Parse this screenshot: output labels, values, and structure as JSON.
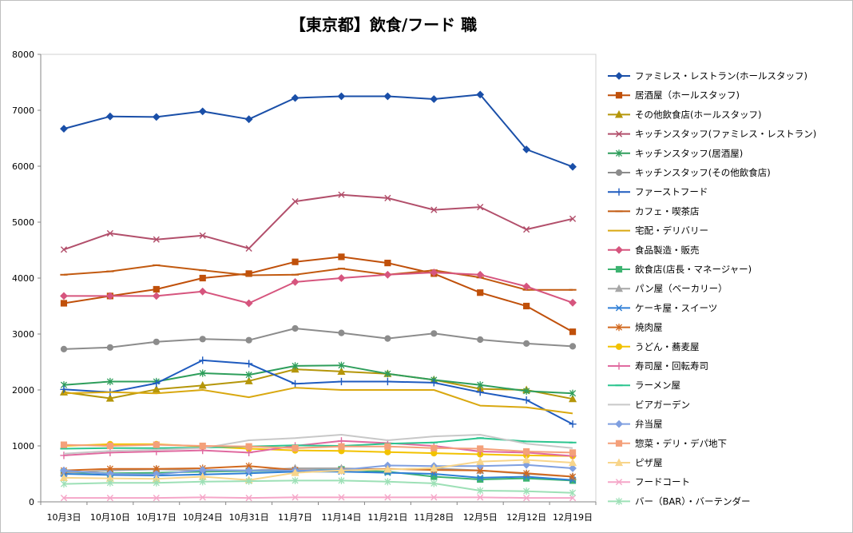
{
  "chart_data": {
    "type": "line",
    "title": "【東京都】飲食/フード 職",
    "xlabel": "",
    "ylabel": "",
    "ylim": [
      0,
      8000
    ],
    "yticks": [
      0,
      1000,
      2000,
      3000,
      4000,
      5000,
      6000,
      7000,
      8000
    ],
    "grid": "none",
    "legend_position": "right",
    "categories": [
      "10月3日",
      "10月10日",
      "10月17日",
      "10月24日",
      "10月31日",
      "11月7日",
      "11月14日",
      "11月21日",
      "11月28日",
      "12月5日",
      "12月12日",
      "12月19日"
    ],
    "series": [
      {
        "name": "ファミレス・レストラン(ホールスタッフ)",
        "color": "#1a4fa8",
        "marker": "diamond",
        "values": [
          6670,
          6890,
          6880,
          6980,
          6840,
          7220,
          7250,
          7250,
          7200,
          7280,
          6300,
          5990
        ]
      },
      {
        "name": "居酒屋（ホールスタッフ)",
        "color": "#c0500a",
        "marker": "square",
        "values": [
          3550,
          3680,
          3800,
          4000,
          4080,
          4290,
          4380,
          4270,
          4080,
          3740,
          3500,
          3040
        ]
      },
      {
        "name": "その他飲食店(ホールスタッフ)",
        "color": "#b5960a",
        "marker": "triangle",
        "values": [
          1960,
          1850,
          2010,
          2080,
          2160,
          2370,
          2330,
          2290,
          2180,
          2020,
          2000,
          1840
        ]
      },
      {
        "name": "キッチンスタッフ(ファミレス・レストラン)",
        "color": "#b24f6b",
        "marker": "x",
        "values": [
          4510,
          4800,
          4690,
          4760,
          4530,
          5370,
          5490,
          5430,
          5220,
          5270,
          4870,
          5060
        ]
      },
      {
        "name": "キッチンスタッフ(居酒屋)",
        "color": "#2e9e5b",
        "marker": "asterisk",
        "values": [
          2090,
          2150,
          2150,
          2300,
          2270,
          2430,
          2440,
          2290,
          2180,
          2090,
          1980,
          1940
        ]
      },
      {
        "name": "キッチンスタッフ(その他飲食店)",
        "color": "#8c8c8c",
        "marker": "circle",
        "values": [
          2730,
          2760,
          2860,
          2910,
          2890,
          3100,
          3020,
          2920,
          3010,
          2900,
          2830,
          2780
        ]
      },
      {
        "name": "ファーストフード",
        "color": "#1f5bbf",
        "marker": "plus",
        "values": [
          2010,
          1960,
          2120,
          2530,
          2470,
          2110,
          2150,
          2150,
          2130,
          1960,
          1820,
          1390
        ]
      },
      {
        "name": "カフェ・喫茶店",
        "color": "#c25a10",
        "marker": "dash",
        "values": [
          4060,
          4120,
          4230,
          4140,
          4050,
          4060,
          4170,
          4060,
          4140,
          4010,
          3790,
          3790
        ]
      },
      {
        "name": "宅配・デリバリー",
        "color": "#d9a810",
        "marker": "none",
        "values": [
          1940,
          1960,
          1940,
          2000,
          1870,
          2040,
          2000,
          2000,
          2000,
          1720,
          1690,
          1580
        ]
      },
      {
        "name": "食品製造・販売",
        "color": "#d6557e",
        "marker": "diamond",
        "values": [
          3680,
          3680,
          3680,
          3760,
          3550,
          3930,
          4000,
          4060,
          4100,
          4060,
          3850,
          3560
        ]
      },
      {
        "name": "飲食店(店長・マネージャー)",
        "color": "#3cb371",
        "marker": "square",
        "values": [
          530,
          510,
          520,
          540,
          550,
          560,
          580,
          540,
          450,
          400,
          420,
          380
        ]
      },
      {
        "name": "パン屋（ベーカリー）",
        "color": "#a6a6a6",
        "marker": "triangle",
        "values": [
          520,
          560,
          580,
          560,
          560,
          600,
          600,
          580,
          600,
          560,
          500,
          450
        ]
      },
      {
        "name": "ケーキ屋・スイーツ",
        "color": "#2f7fd6",
        "marker": "x",
        "values": [
          500,
          480,
          470,
          490,
          510,
          540,
          540,
          520,
          500,
          430,
          450,
          390
        ]
      },
      {
        "name": "焼肉屋",
        "color": "#d2691e",
        "marker": "asterisk",
        "values": [
          560,
          590,
          590,
          600,
          640,
          570,
          560,
          590,
          570,
          560,
          510,
          450
        ]
      },
      {
        "name": "うどん・蕎麦屋",
        "color": "#f2c200",
        "marker": "circle",
        "values": [
          1000,
          1030,
          1030,
          990,
          950,
          920,
          910,
          890,
          870,
          850,
          830,
          820
        ]
      },
      {
        "name": "寿司屋・回転寿司",
        "color": "#e06aa0",
        "marker": "plus",
        "values": [
          830,
          880,
          900,
          920,
          880,
          1000,
          1090,
          1050,
          1000,
          900,
          880,
          820
        ]
      },
      {
        "name": "ラーメン屋",
        "color": "#2cc58f",
        "marker": "dash",
        "values": [
          950,
          960,
          960,
          970,
          990,
          1010,
          1000,
          1040,
          1060,
          1140,
          1080,
          1060
        ]
      },
      {
        "name": "ビアガーデン",
        "color": "#c8c8c8",
        "marker": "none",
        "values": [
          860,
          910,
          930,
          960,
          1100,
          1140,
          1200,
          1100,
          1170,
          1200,
          1040,
          960
        ]
      },
      {
        "name": "弁当屋",
        "color": "#7f9fe0",
        "marker": "diamond",
        "values": [
          560,
          500,
          490,
          570,
          560,
          560,
          570,
          650,
          640,
          640,
          660,
          600
        ]
      },
      {
        "name": "惣菜・デリ・デパ地下",
        "color": "#f4a07a",
        "marker": "square",
        "values": [
          1020,
          1000,
          1020,
          1000,
          990,
          960,
          990,
          990,
          960,
          950,
          900,
          880
        ]
      },
      {
        "name": "ピザ屋",
        "color": "#f8d58a",
        "marker": "triangle",
        "values": [
          430,
          420,
          410,
          450,
          390,
          520,
          560,
          580,
          600,
          720,
          750,
          700
        ]
      },
      {
        "name": "フードコート",
        "color": "#f5a6c8",
        "marker": "x",
        "values": [
          70,
          70,
          70,
          80,
          70,
          80,
          80,
          80,
          80,
          80,
          70,
          70
        ]
      },
      {
        "name": "バー（BAR）・バーテンダー",
        "color": "#9de0b6",
        "marker": "asterisk",
        "values": [
          320,
          340,
          340,
          360,
          370,
          380,
          380,
          360,
          330,
          200,
          190,
          160
        ]
      }
    ]
  }
}
